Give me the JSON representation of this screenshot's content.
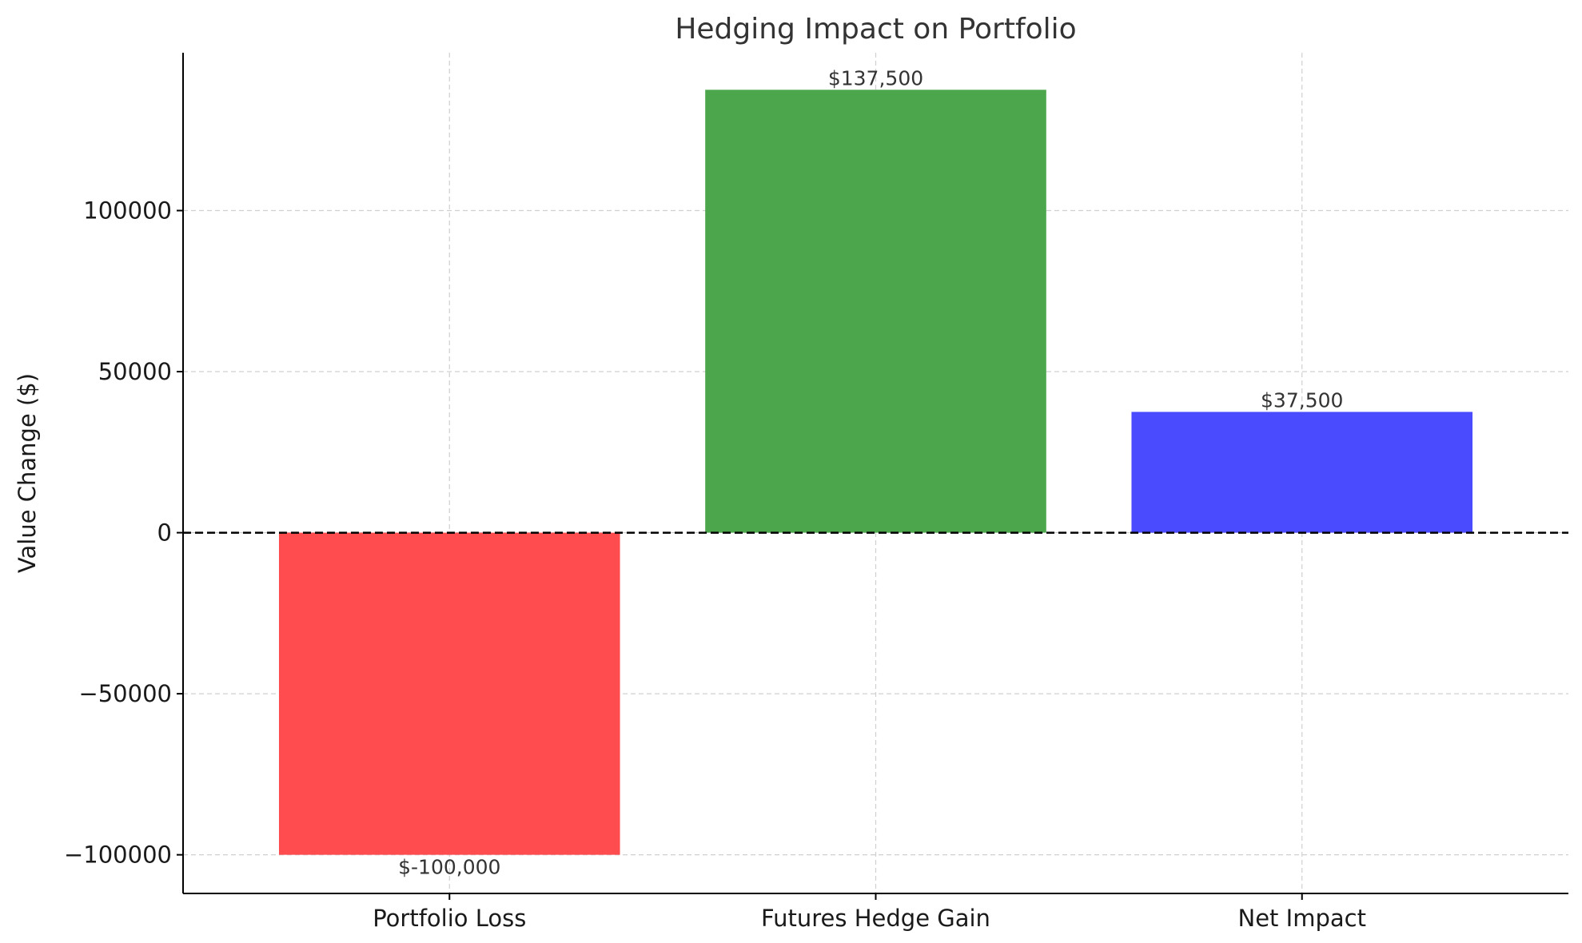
{
  "chart_data": {
    "type": "bar",
    "title": "Hedging Impact on Portfolio",
    "xlabel": "",
    "ylabel": "Value Change ($)",
    "categories": [
      "Portfolio Loss",
      "Futures Hedge Gain",
      "Net Impact"
    ],
    "values": [
      -100000,
      137500,
      37500
    ],
    "data_labels": [
      "$-100,000",
      "$137,500",
      "$37,500"
    ],
    "colors": [
      "#ff4d4f",
      "#4ca64c",
      "#4a4aff"
    ],
    "ylim": [
      -112000,
      149000
    ],
    "yticks": [
      -100000,
      -50000,
      0,
      50000,
      100000
    ],
    "ytick_labels": [
      "−100000",
      "−50000",
      "0",
      "50000",
      "100000"
    ],
    "zero_line": true,
    "grid": true
  }
}
